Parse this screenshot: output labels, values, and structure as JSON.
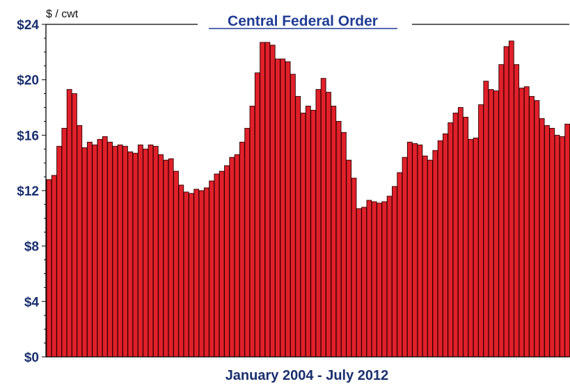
{
  "chart_data": {
    "type": "bar",
    "title": "Central Federal Order",
    "ylabel": "$ / cwt",
    "xlabel": "January 2004 - July 2012",
    "ylim": [
      0,
      24
    ],
    "yticks": [
      0,
      4,
      8,
      12,
      16,
      20,
      24
    ],
    "ytick_labels": [
      "$0",
      "$4",
      "$8",
      "$12",
      "$16",
      "$20",
      "$24"
    ],
    "bar_color": "#e1202a",
    "bar_edge_color": "#2a0000",
    "axis_color": "#000000",
    "title_color": "#1f3c96",
    "label_color": "#1a2f6e",
    "title_underlined": true,
    "series": [
      {
        "values": [
          12.8,
          13.1,
          15.2,
          16.5,
          19.3,
          19.0,
          16.7,
          15.1,
          15.5,
          15.3,
          15.7,
          15.9,
          15.5,
          15.2,
          15.3,
          15.2,
          14.8,
          14.7,
          15.3,
          15.0,
          15.3,
          15.2,
          14.6,
          14.2,
          14.3,
          13.4,
          12.4,
          11.9,
          11.8,
          12.1,
          12.0,
          12.2,
          12.7,
          13.2,
          13.4,
          13.8,
          14.4,
          14.6,
          15.5,
          16.5,
          18.1,
          20.5,
          22.7,
          22.7,
          22.5,
          21.5,
          21.5,
          21.3,
          20.4,
          18.8,
          17.6,
          18.1,
          17.8,
          19.3,
          20.1,
          19.1,
          18.1,
          17.0,
          16.2,
          14.2,
          12.9,
          10.7,
          10.8,
          11.3,
          11.2,
          11.1,
          11.2,
          11.6,
          12.3,
          13.3,
          14.4,
          15.5,
          15.4,
          15.3,
          14.5,
          14.2,
          14.9,
          15.6,
          16.1,
          16.9,
          17.6,
          18.0,
          17.3,
          15.7,
          15.8,
          18.2,
          19.9,
          19.3,
          19.2,
          21.1,
          22.4,
          22.8,
          21.1,
          19.4,
          19.5,
          18.8,
          18.5,
          17.2,
          16.7,
          16.5,
          16.0,
          15.9,
          16.8
        ]
      }
    ]
  }
}
